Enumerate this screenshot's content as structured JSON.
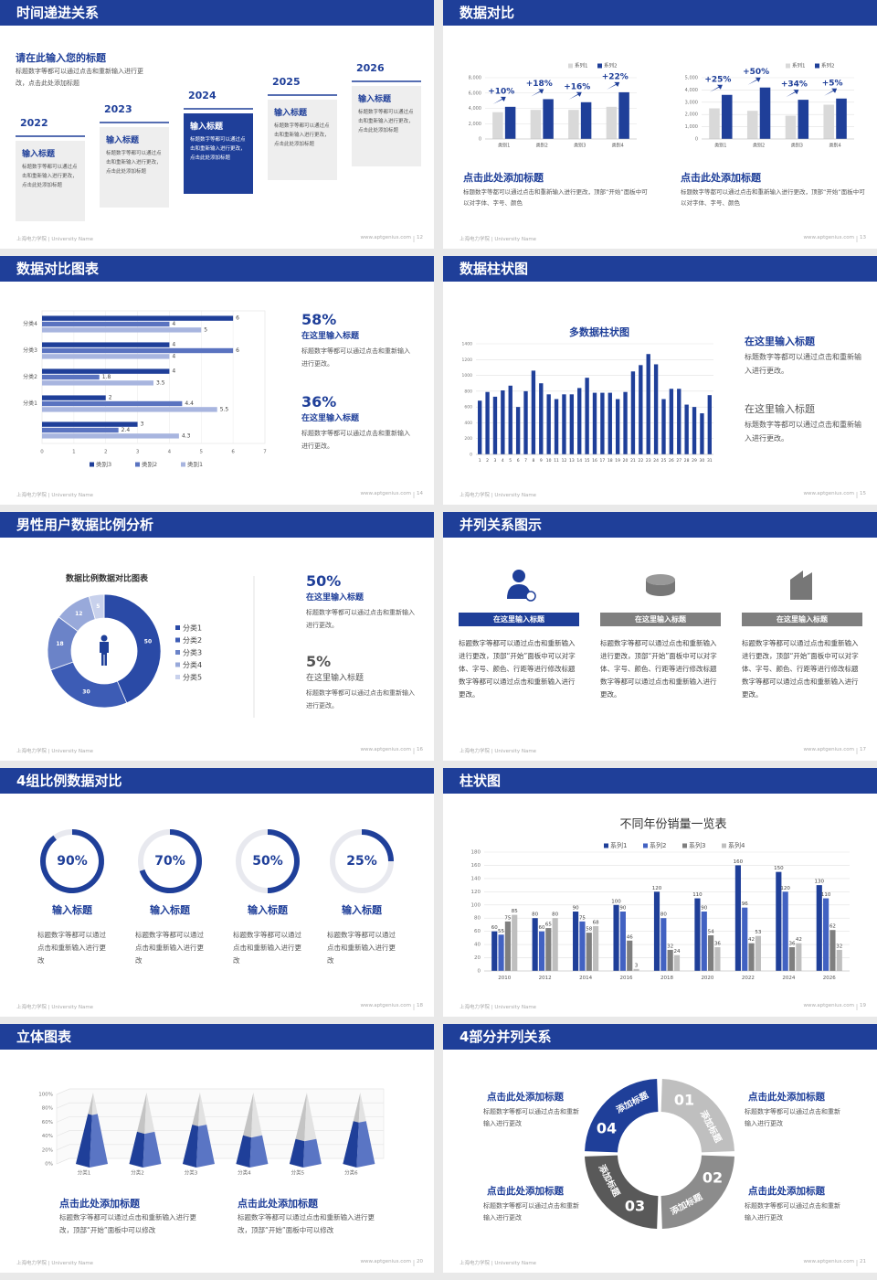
{
  "footer": {
    "school": "上海电力学院 | University Name",
    "site": "www.aptgenius.com"
  },
  "slides": [
    {
      "title": "时间递进关系",
      "page": 12,
      "heading": "请在此输入您的标题",
      "text": "标题数字等都可以通过点击和重新输入进行更改，点击此处添加标题",
      "steps": [
        {
          "year": "2022",
          "title": "输入标题",
          "text": "标题数字等都可以通过点击和重新输入进行更改，点击此处添加标题"
        },
        {
          "year": "2023",
          "title": "输入标题",
          "text": "标题数字等都可以通过点击和重新输入进行更改，点击此处添加标题"
        },
        {
          "year": "2024",
          "title": "输入标题",
          "text": "标题数字等都可以通过点击和重新输入进行更改，点击此处添加标题"
        },
        {
          "year": "2025",
          "title": "输入标题",
          "text": "标题数字等都可以通过点击和重新输入进行更改，点击此处添加标题"
        },
        {
          "year": "2026",
          "title": "输入标题",
          "text": "标题数字等都可以通过点击和重新输入进行更改，点击此处添加标题"
        }
      ]
    },
    {
      "title": "数据对比",
      "page": 13,
      "charts": [
        {
          "type": "bar",
          "categories": [
            "类别1",
            "类别2",
            "类别3",
            "类别4"
          ],
          "series": [
            {
              "name": "系列1",
              "color": "#d9d9d9",
              "values": [
                3500,
                3800,
                3800,
                4200
              ]
            },
            {
              "name": "系列2",
              "color": "#1f3f99",
              "values": [
                4200,
                5200,
                4800,
                6100
              ]
            }
          ],
          "ylim": [
            0,
            8000
          ],
          "yticks": [
            0,
            {
              "value": 2000,
              "label": "2,000"
            },
            {
              "value": 4000,
              "label": "4,000"
            },
            {
              "value": 6000,
              "label": "6,000"
            },
            {
              "value": 8000,
              "label": "8,000"
            }
          ],
          "growth": [
            "+10%",
            "+18%",
            "+16%",
            "+22%"
          ]
        },
        {
          "type": "bar",
          "categories": [
            "类别1",
            "类别2",
            "类别3",
            "类别4"
          ],
          "series": [
            {
              "name": "系列1",
              "color": "#d9d9d9",
              "values": [
                2500,
                2300,
                1900,
                2800
              ]
            },
            {
              "name": "系列2",
              "color": "#1f3f99",
              "values": [
                3600,
                4200,
                3200,
                3300
              ]
            }
          ],
          "ylim": [
            0,
            5000
          ],
          "yticks": [
            0,
            {
              "value": 1000,
              "label": "1,000"
            },
            {
              "value": 2000,
              "label": "2,000"
            },
            {
              "value": 3000,
              "label": "3,000"
            },
            {
              "value": 4000,
              "label": "4,000"
            },
            {
              "value": 5000,
              "label": "5,000"
            }
          ],
          "growth": [
            "+25%",
            "+50%",
            "+34%",
            "+5%"
          ]
        }
      ],
      "blocks": [
        {
          "heading": "点击此处添加标题",
          "text": "标题数字等都可以通过点击和重新输入进行更改，顶部“开始”面板中可以对字体、字号、颜色"
        },
        {
          "heading": "点击此处添加标题",
          "text": "标题数字等都可以通过点击和重新输入进行更改，顶部“开始”面板中可以对字体、字号、颜色"
        }
      ]
    },
    {
      "title": "数据对比图表",
      "page": 14,
      "chart": {
        "type": "bar",
        "orientation": "horizontal",
        "categories": [
          null,
          "分类1",
          "分类2",
          "分类3",
          "分类4"
        ],
        "series": [
          {
            "name": "类别3",
            "color": "#1f3f99",
            "values": [
              3,
              2,
              4,
              4,
              6
            ]
          },
          {
            "name": "类别2",
            "color": "#5a73c0",
            "values": [
              2.4,
              4.4,
              1.8,
              6,
              4
            ]
          },
          {
            "name": "类别1",
            "color": "#a8b5df",
            "values": [
              4.3,
              5.5,
              3.5,
              4,
              5
            ]
          }
        ],
        "xlim": [
          0,
          7
        ],
        "xticks": [
          0,
          1,
          2,
          3,
          4,
          5,
          6,
          7
        ]
      },
      "stats": [
        {
          "value": "58%",
          "title": "在这里输入标题",
          "text": "标题数字等都可以通过点击和重新输入进行更改。"
        },
        {
          "value": "36%",
          "title": "在这里输入标题",
          "text": "标题数字等都可以通过点击和重新输入进行更改。"
        }
      ]
    },
    {
      "title": "数据柱状图",
      "page": 15,
      "chart": {
        "type": "bar",
        "title": "多数据柱状图",
        "categories": [
          1,
          2,
          3,
          4,
          5,
          6,
          7,
          8,
          9,
          10,
          11,
          12,
          13,
          14,
          15,
          16,
          17,
          18,
          19,
          20,
          21,
          22,
          23,
          24,
          25,
          26,
          27,
          28,
          29,
          30,
          31
        ],
        "series": [
          {
            "color": "#1f3f99",
            "values": [
              680,
              790,
              730,
              810,
              870,
              600,
              800,
              1060,
              900,
              760,
              700,
              760,
              760,
              840,
              970,
              780,
              780,
              780,
              700,
              790,
              1050,
              1130,
              1270,
              1140,
              700,
              830,
              830,
              630,
              600,
              520,
              750
            ]
          }
        ],
        "ylim": [
          0,
          1400
        ],
        "yticks": [
          0,
          200,
          400,
          600,
          800,
          1000,
          1200,
          1400
        ]
      },
      "blocks": [
        {
          "title": "在这里输入标题",
          "text": "标题数字等都可以通过点击和重新输入进行更改。"
        },
        {
          "title": "在这里输入标题",
          "text": "标题数字等都可以通过点击和重新输入进行更改。"
        }
      ]
    },
    {
      "title": "男性用户数据比例分析",
      "page": 16,
      "chart": {
        "type": "donut",
        "title": "数据比例数据对比图表",
        "categories": [
          "分类1",
          "分类2",
          "分类3",
          "分类4",
          "分类5"
        ],
        "values": [
          50,
          30,
          18,
          12,
          5
        ],
        "colors": [
          "#2a4aa6",
          "#3d5cb5",
          "#6b83c8",
          "#98a9da",
          "#c8d1ec"
        ]
      },
      "stats": [
        {
          "value": "50%",
          "title": "在这里输入标题",
          "text": "标题数字等都可以通过点击和重新输入进行更改。"
        },
        {
          "value": "5%",
          "title": "在这里输入标题",
          "text": "标题数字等都可以通过点击和重新输入进行更改。"
        }
      ]
    },
    {
      "title": "并列关系图示",
      "page": 17,
      "columns": [
        {
          "label": "在这里输入标题",
          "text": "标题数字等都可以通过点击和重新输入进行更改，顶部“开始”面板中可以对字体、字号、颜色、行距等进行修改标题数字等都可以通过点击和重新输入进行更改。"
        },
        {
          "label": "在这里输入标题",
          "text": "标题数字等都可以通过点击和重新输入进行更改，顶部“开始”面板中可以对字体、字号、颜色、行距等进行修改标题数字等都可以通过点击和重新输入进行更改。"
        },
        {
          "label": "在这里输入标题",
          "text": "标题数字等都可以通过点击和重新输入进行更改，顶部“开始”面板中可以对字体、字号、颜色、行距等进行修改标题数字等都可以通过点击和重新输入进行更改。"
        }
      ]
    },
    {
      "title": "4组比例数据对比",
      "page": 18,
      "chart": {
        "type": "ring",
        "values": [
          90,
          70,
          50,
          25
        ],
        "value_labels": [
          "90%",
          "70%",
          "50%",
          "25%"
        ]
      },
      "items": [
        {
          "title": "输入标题",
          "text": "标题数字等都可以通过点击和重新输入进行更改"
        },
        {
          "title": "输入标题",
          "text": "标题数字等都可以通过点击和重新输入进行更改"
        },
        {
          "title": "输入标题",
          "text": "标题数字等都可以通过点击和重新输入进行更改"
        },
        {
          "title": "输入标题",
          "text": "标题数字等都可以通过点击和重新输入进行更改"
        }
      ]
    },
    {
      "title": "柱状图",
      "page": 19,
      "chart": {
        "type": "bar",
        "title": "不同年份销量一览表",
        "categories": [
          "2010",
          "2012",
          "2014",
          "2016",
          "2018",
          "2020",
          "2022",
          "2024",
          "2026"
        ],
        "series": [
          {
            "name": "系列1",
            "color": "#1f3f99",
            "values": [
              60,
              80,
              90,
              100,
              120,
              110,
              160,
              150,
              130
            ]
          },
          {
            "name": "系列2",
            "color": "#4262c2",
            "values": [
              55,
              60,
              75,
              90,
              80,
              90,
              96,
              120,
              110
            ]
          },
          {
            "name": "系列3",
            "color": "#7f7f7f",
            "values": [
              75,
              65,
              58,
              46,
              32,
              54,
              42,
              36,
              62
            ]
          },
          {
            "name": "系列4",
            "color": "#bfbfbf",
            "values": [
              85,
              80,
              68,
              3,
              24,
              36,
              53,
              42,
              32
            ]
          }
        ],
        "ylim": [
          0,
          180
        ],
        "yticks": [
          0,
          20,
          40,
          60,
          80,
          100,
          120,
          140,
          160,
          180
        ]
      }
    },
    {
      "title": "立体图表",
      "page": 20,
      "chart": {
        "type": "pyramid",
        "categories": [
          "分类1",
          "分类2",
          "分类3",
          "分类4",
          "分类5",
          "分类6"
        ],
        "values": [
          70,
          45,
          55,
          40,
          35,
          60
        ],
        "ylim": [
          0,
          100
        ],
        "yticks": [
          {
            "value": 0,
            "label": "0%"
          },
          {
            "value": 20,
            "label": "20%"
          },
          {
            "value": 40,
            "label": "40%"
          },
          {
            "value": 60,
            "label": "60%"
          },
          {
            "value": 80,
            "label": "80%"
          },
          {
            "value": 100,
            "label": "100%"
          }
        ]
      },
      "blocks": [
        {
          "heading": "点击此处添加标题",
          "text": "标题数字等都可以通过点击和重新输入进行更改，顶部“开始”面板中可以修改"
        },
        {
          "heading": "点击此处添加标题",
          "text": "标题数字等都可以通过点击和重新输入进行更改，顶部“开始”面板中可以修改"
        }
      ]
    },
    {
      "title": "4部分并列关系",
      "page": 21,
      "segments": [
        {
          "number": "01",
          "label": "添加标题",
          "color": "#bfbfbf"
        },
        {
          "number": "02",
          "label": "添加标题",
          "color": "#8c8c8c"
        },
        {
          "number": "03",
          "label": "添加标题",
          "color": "#595959"
        },
        {
          "number": "04",
          "label": "添加标题",
          "color": "#1f3f99"
        }
      ],
      "blocks": [
        {
          "heading": "点击此处添加标题",
          "text": "标题数字等都可以通过点击和重新输入进行更改"
        },
        {
          "heading": "点击此处添加标题",
          "text": "标题数字等都可以通过点击和重新输入进行更改"
        },
        {
          "heading": "点击此处添加标题",
          "text": "标题数字等都可以通过点击和重新输入进行更改"
        },
        {
          "heading": "点击此处添加标题",
          "text": "标题数字等都可以通过点击和重新输入进行更改"
        }
      ]
    }
  ]
}
